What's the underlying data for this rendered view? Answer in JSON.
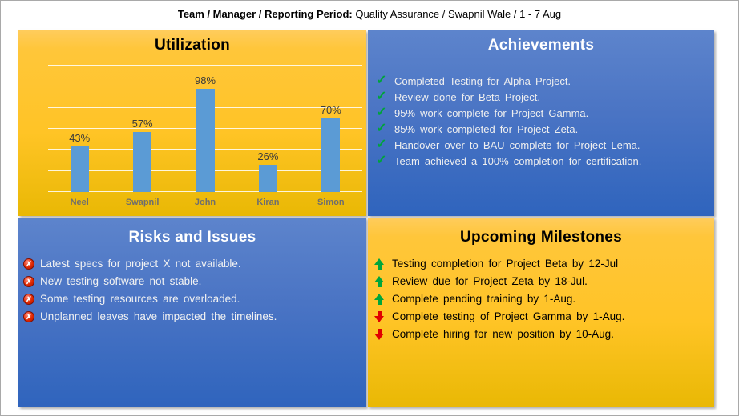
{
  "header": {
    "label": "Team / Manager / Reporting Period:",
    "value": "Quality Assurance / Swapnil Wale /  1 - 7 Aug"
  },
  "utilization": {
    "title": "Utilization"
  },
  "achievements": {
    "title": "Achievements",
    "check_glyph": "✓",
    "items": [
      {
        "icon": "check-icon",
        "text": "Completed Testing for Alpha Project."
      },
      {
        "icon": "check-icon",
        "text": "Review done for Beta Project."
      },
      {
        "icon": "check-icon",
        "text": "95% work complete for Project Gamma."
      },
      {
        "icon": "check-icon",
        "text": "85% work completed for Project Zeta."
      },
      {
        "icon": "check-icon",
        "text": "Handover over to BAU complete for Project Lema."
      },
      {
        "icon": "check-icon",
        "text": "Team achieved a 100% completion for certification."
      }
    ]
  },
  "risks": {
    "title": "Risks and Issues",
    "x_glyph": "✗",
    "items": [
      {
        "icon": "error-icon",
        "text": "Latest specs for project X not available."
      },
      {
        "icon": "error-icon",
        "text": "New testing software not stable."
      },
      {
        "icon": "error-icon",
        "text": "Some testing resources are overloaded."
      },
      {
        "icon": "error-icon",
        "text": "Unplanned leaves have impacted the timelines."
      }
    ]
  },
  "milestones": {
    "title": "Upcoming Milestones",
    "items": [
      {
        "icon": "arrow-up",
        "text": "Testing completion for Project Beta by 12-Jul"
      },
      {
        "icon": "arrow-up",
        "text": "Review due for Project Zeta by 18-Jul."
      },
      {
        "icon": "arrow-up",
        "text": "Complete pending training by 1-Aug."
      },
      {
        "icon": "arrow-down",
        "text": "Complete testing of Project Gamma by 1-Aug."
      },
      {
        "icon": "arrow-down",
        "text": "Complete hiring for new position by 10-Aug."
      }
    ]
  },
  "chart_data": {
    "type": "bar",
    "title": "Utilization",
    "categories": [
      "Neel",
      "Swapnil",
      "John",
      "Kiran",
      "Simon"
    ],
    "values": [
      43,
      57,
      98,
      26,
      70
    ],
    "value_labels": [
      "43%",
      "57%",
      "98%",
      "26%",
      "70%"
    ],
    "xlabel": "",
    "ylabel": "",
    "ylim": [
      0,
      120
    ],
    "grid_step": 20,
    "grid": true,
    "legend": false,
    "bar_color": "#5B9BD5"
  },
  "colors": {
    "yellow_panel_top": "#FFCC5C",
    "yellow_panel_bottom": "#E9B804",
    "blue_panel_top": "#5D84CC",
    "blue_panel_bottom": "#2F64BD",
    "bar_blue": "#5B9BD5",
    "check_green": "#00A33C",
    "error_red": "#D61A00",
    "arrow_up_green": "#00A63C",
    "arrow_down_red": "#E10000"
  }
}
